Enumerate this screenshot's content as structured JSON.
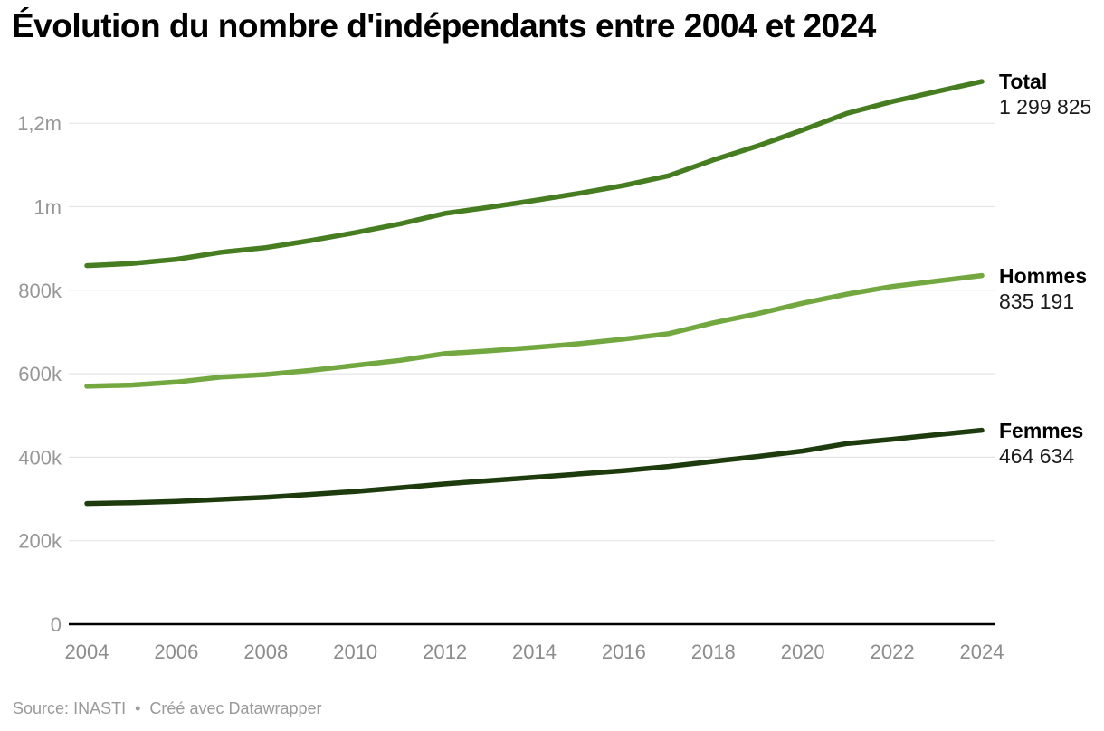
{
  "header": {
    "title": "Évolution du nombre d'indépendants entre 2004 et 2024"
  },
  "footer": {
    "source_label": "Source:",
    "source_name": "INASTI",
    "separator": "•",
    "credit_text": "Créé avec Datawrapper"
  },
  "chart_data": {
    "type": "line",
    "title": "Évolution du nombre d'indépendants entre 2004 et 2024",
    "xlabel": "",
    "ylabel": "",
    "xlim": [
      2004,
      2024
    ],
    "ylim": [
      0,
      1320000
    ],
    "grid": "horizontal",
    "legend_position": "end-of-line-labels",
    "x": [
      2004,
      2005,
      2006,
      2007,
      2008,
      2009,
      2010,
      2011,
      2012,
      2013,
      2014,
      2015,
      2016,
      2017,
      2018,
      2019,
      2020,
      2021,
      2022,
      2023,
      2024
    ],
    "x_tick_labels": [
      "2004",
      "2006",
      "2008",
      "2010",
      "2012",
      "2014",
      "2016",
      "2018",
      "2020",
      "2022",
      "2024"
    ],
    "y_ticks": [
      {
        "value": 0,
        "label": "0"
      },
      {
        "value": 200000,
        "label": "200k"
      },
      {
        "value": 400000,
        "label": "400k"
      },
      {
        "value": 600000,
        "label": "600k"
      },
      {
        "value": 800000,
        "label": "800k"
      },
      {
        "value": 1000000,
        "label": "1m"
      },
      {
        "value": 1200000,
        "label": "1,2m"
      }
    ],
    "series": [
      {
        "name": "Total",
        "color": "#467d21",
        "end_label": "1 299 825",
        "final_value": 1299825,
        "values": [
          859000,
          864000,
          874000,
          891000,
          902000,
          919000,
          938000,
          959000,
          984000,
          999000,
          1015000,
          1032000,
          1051000,
          1074000,
          1112000,
          1146000,
          1184000,
          1224000,
          1252000,
          1276000,
          1299825
        ]
      },
      {
        "name": "Hommes",
        "color": "#72a83f",
        "end_label": "835 191",
        "final_value": 835191,
        "values": [
          570000,
          573000,
          580000,
          592000,
          598000,
          608000,
          620000,
          632000,
          648000,
          655000,
          663000,
          672000,
          683000,
          696000,
          722000,
          744000,
          769000,
          791000,
          809000,
          822000,
          835191
        ]
      },
      {
        "name": "Femmes",
        "color": "#1d3b0d",
        "end_label": "464 634",
        "final_value": 464634,
        "values": [
          289000,
          291000,
          294000,
          299000,
          304000,
          311000,
          318000,
          327000,
          336000,
          344000,
          352000,
          360000,
          368000,
          378000,
          390000,
          402000,
          415000,
          433000,
          443000,
          454000,
          464634
        ]
      }
    ]
  }
}
